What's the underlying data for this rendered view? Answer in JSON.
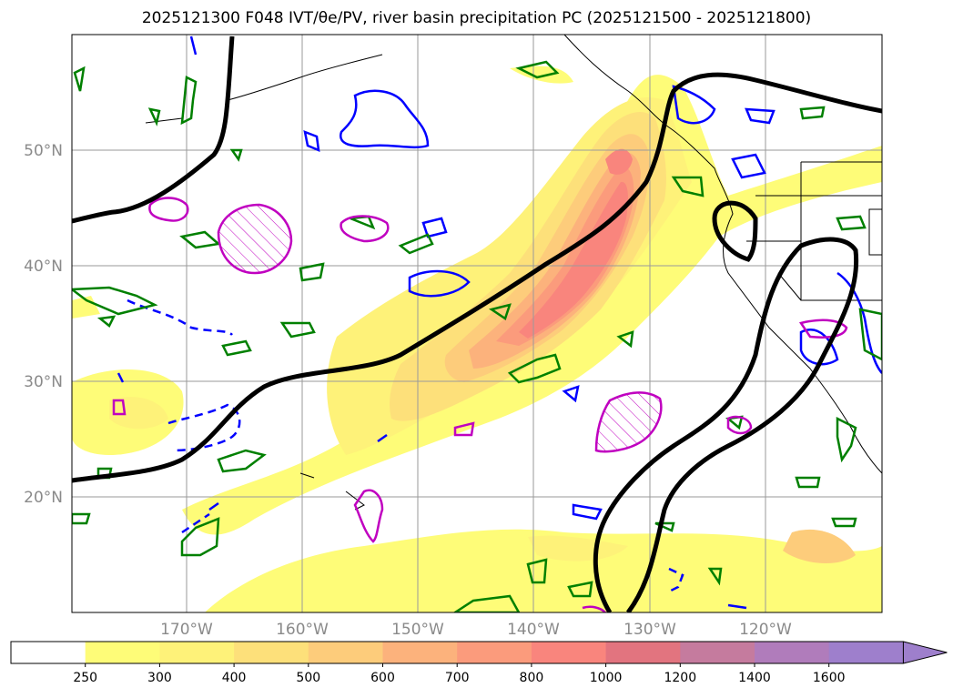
{
  "title": "2025121300 F048 IVT/θe/PV, river basin precipitation PC (2025121500 - 2025121800)",
  "map": {
    "lat_labels": [
      "50°N",
      "40°N",
      "30°N",
      "20°N"
    ],
    "lon_labels": [
      "170°W",
      "160°W",
      "150°W",
      "140°W",
      "130°W",
      "120°W"
    ],
    "projection": "PlateCarree",
    "extent": {
      "lon": [
        -180,
        -110
      ],
      "lat": [
        10,
        60
      ]
    }
  },
  "colorbar": {
    "ticks": [
      "250",
      "300",
      "400",
      "500",
      "600",
      "700",
      "800",
      "1000",
      "1200",
      "1400",
      "1600"
    ],
    "colors": [
      "#ffffff",
      "#fefc78",
      "#fef279",
      "#fde07a",
      "#fdcc7b",
      "#fcb27c",
      "#fb9b7c",
      "#f9857d",
      "#e2747f",
      "#c57b9e",
      "#b07cbb",
      "#9e7fcc"
    ],
    "extend": "max"
  },
  "contour_colors": {
    "pv": "#000000",
    "theta_e_solid": "#0000ff",
    "theta_e_dashed": "#0000ff",
    "precip": "#008000",
    "vorticity": "#c000c0"
  }
}
